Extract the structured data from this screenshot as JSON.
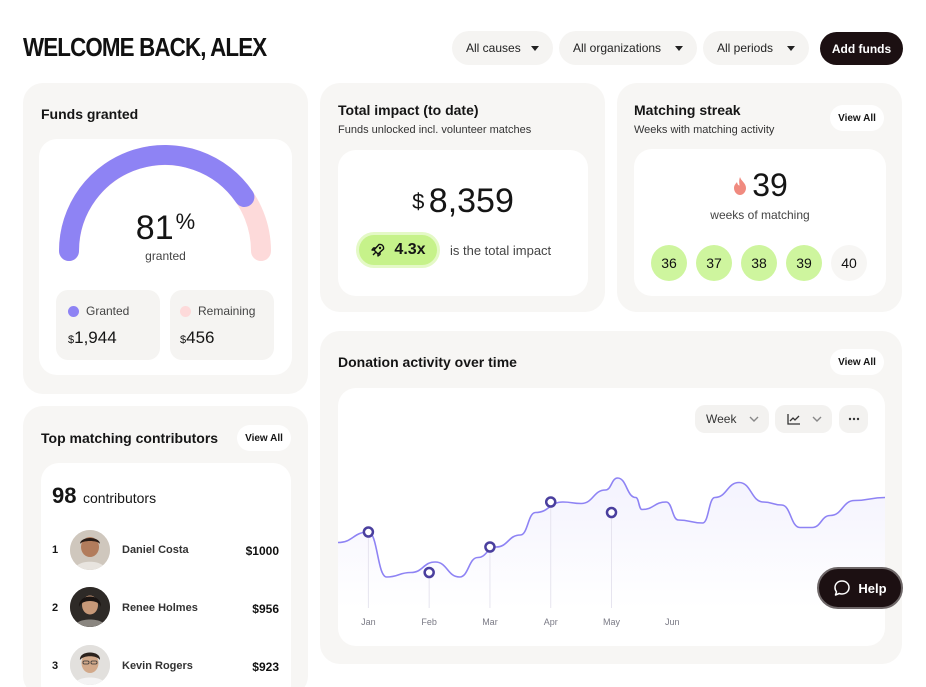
{
  "header": {
    "title": "WELCOME BACK, ALEX",
    "filters": [
      "All causes",
      "All organizations",
      "All periods"
    ],
    "add_funds_label": "Add funds"
  },
  "funds_granted": {
    "title": "Funds granted",
    "percent": "81",
    "percent_sign": "%",
    "percent_label": "granted",
    "granted_fraction": 0.81,
    "granted_label": "Granted",
    "granted_currency": "$",
    "granted_value": "1,944",
    "remaining_label": "Remaining",
    "remaining_currency": "$",
    "remaining_value": "456",
    "colors": {
      "granted": "#8e83f4",
      "remaining": "#fddada"
    }
  },
  "total_impact": {
    "title": "Total impact (to date)",
    "subtitle": "Funds unlocked incl. volunteer matches",
    "currency": "$",
    "amount": "8,359",
    "multiplier": "4.3x",
    "multiplier_text": "is the total impact"
  },
  "matching_streak": {
    "title": "Matching streak",
    "subtitle": "Weeks with matching activity",
    "view_all": "View All",
    "streak": "39",
    "streak_label": "weeks of matching",
    "weeks": [
      "36",
      "37",
      "38",
      "39",
      "40"
    ]
  },
  "contributors": {
    "title": "Top matching contributors",
    "view_all": "View All",
    "count": "98",
    "count_label": "contributors",
    "rows": [
      {
        "rank": "1",
        "name": "Daniel Costa",
        "amount": "$1000"
      },
      {
        "rank": "2",
        "name": "Renee Holmes",
        "amount": "$956"
      },
      {
        "rank": "3",
        "name": "Kevin Rogers",
        "amount": "$923"
      }
    ]
  },
  "donation_activity": {
    "title": "Donation activity over time",
    "view_all": "View All",
    "period_select": "Week",
    "chart_type_icon": "line-chart-icon",
    "more_icon": "more-icon",
    "help_label": "Help"
  },
  "chart_data": {
    "type": "line",
    "title": "Donation activity over time",
    "x": [
      "Jan",
      "Feb",
      "Mar",
      "Apr",
      "May",
      "Jun"
    ],
    "ylim": [
      0,
      100
    ],
    "line_points": [
      [
        0,
        35
      ],
      [
        0.5,
        42
      ],
      [
        0.8,
        12
      ],
      [
        1.2,
        15
      ],
      [
        1.6,
        22
      ],
      [
        2.0,
        12
      ],
      [
        2.3,
        25
      ],
      [
        2.6,
        32
      ],
      [
        3.0,
        40
      ],
      [
        3.25,
        55
      ],
      [
        3.7,
        62
      ],
      [
        4.0,
        61
      ],
      [
        4.4,
        70
      ],
      [
        4.6,
        78
      ],
      [
        4.9,
        65
      ],
      [
        5.0,
        57
      ],
      [
        5.4,
        62
      ],
      [
        5.6,
        50
      ],
      [
        6.0,
        48
      ],
      [
        6.2,
        65
      ],
      [
        6.6,
        75
      ],
      [
        7.0,
        62
      ],
      [
        7.3,
        60
      ],
      [
        7.6,
        45
      ],
      [
        7.8,
        45
      ],
      [
        8.1,
        53
      ],
      [
        8.5,
        63
      ],
      [
        9.0,
        65
      ]
    ],
    "markers": [
      {
        "x": 0.5,
        "y": 42
      },
      {
        "x": 1.5,
        "y": 15
      },
      {
        "x": 2.5,
        "y": 32
      },
      {
        "x": 3.5,
        "y": 62
      },
      {
        "x": 4.5,
        "y": 55
      }
    ],
    "line_color": "#8e83f4",
    "marker_color": "#4a3f9e",
    "grid": false
  }
}
